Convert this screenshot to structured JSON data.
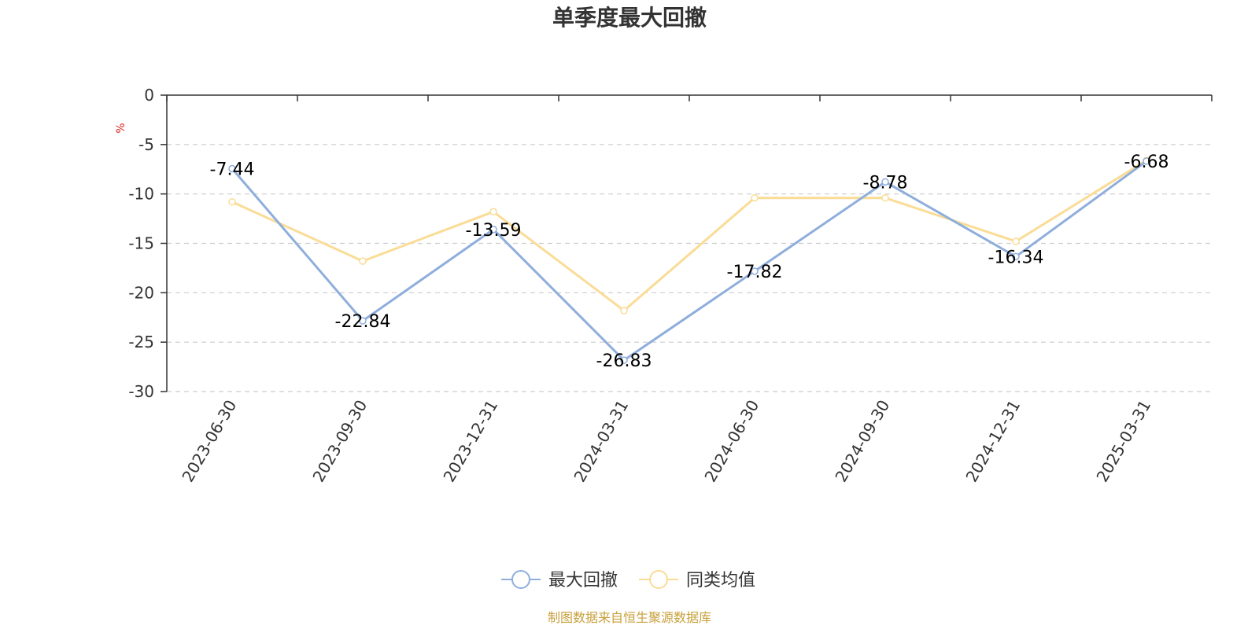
{
  "chart_data": {
    "type": "line",
    "title": "单季度最大回撤",
    "ylabel": "%",
    "categories": [
      "2023-06-30",
      "2023-09-30",
      "2023-12-31",
      "2024-03-31",
      "2024-06-30",
      "2024-09-30",
      "2024-12-31",
      "2025-03-31"
    ],
    "ylim": [
      -30,
      0
    ],
    "yticks": [
      0,
      -5,
      -10,
      -15,
      -20,
      -25,
      -30
    ],
    "grid": true,
    "legend_position": "bottom",
    "series": [
      {
        "name": "最大回撤",
        "color": "#8faedc",
        "values": [
          -7.44,
          -22.84,
          -13.59,
          -26.83,
          -17.82,
          -8.78,
          -16.34,
          -6.68
        ],
        "labels": [
          "-7.44",
          "-22.84",
          "-13.59",
          "-26.83",
          "-17.82",
          "-8.78",
          "-16.34",
          "-6.68"
        ]
      },
      {
        "name": "同类均值",
        "color": "#fadc96",
        "values": [
          -10.8,
          -16.8,
          -11.8,
          -21.8,
          -10.4,
          -10.4,
          -14.8,
          -6.6
        ]
      }
    ]
  },
  "footer": {
    "source_text": "制图数据来自恒生聚源数据库",
    "source_color": "#c8a03c"
  },
  "unit_color": "#e02020"
}
